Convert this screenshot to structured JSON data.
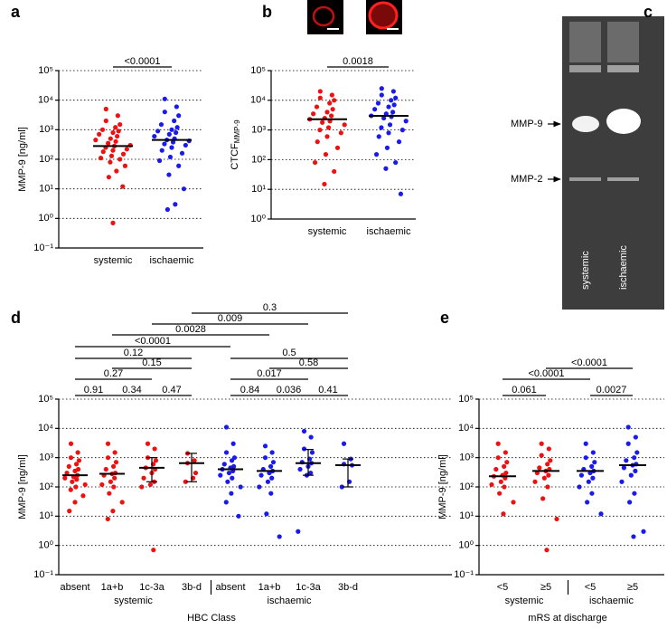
{
  "chart_data": [
    {
      "type": "dotplot",
      "panel": "a",
      "ylabel": "MMP-9 [ng/ml]",
      "log_scale": true,
      "grid": true,
      "ylim": [
        0.1,
        100000
      ],
      "yticks": [
        {
          "value": 0.1,
          "label": "10⁻¹"
        },
        {
          "value": 1,
          "label": "10⁰"
        },
        {
          "value": 10,
          "label": "10¹"
        },
        {
          "value": 100,
          "label": "10²"
        },
        {
          "value": 1000,
          "label": "10³"
        },
        {
          "value": 10000,
          "label": "10⁴"
        },
        {
          "value": 100000,
          "label": "10⁵"
        }
      ],
      "series": [
        {
          "name": "systemic",
          "color": "#ee1111",
          "median": 280,
          "values": [
            5000,
            3000,
            2000,
            1500,
            1200,
            1000,
            900,
            800,
            700,
            600,
            500,
            450,
            400,
            350,
            300,
            280,
            250,
            220,
            200,
            180,
            150,
            130,
            110,
            100,
            80,
            60,
            40,
            25,
            12,
            0.7
          ]
        },
        {
          "name": "ischaemic",
          "color": "#1a1aee",
          "median": 450,
          "values": [
            11000,
            6000,
            4000,
            3000,
            2000,
            1500,
            1200,
            1000,
            900,
            800,
            700,
            600,
            500,
            450,
            420,
            380,
            330,
            300,
            250,
            200,
            160,
            120,
            90,
            60,
            30,
            10,
            3,
            2
          ]
        }
      ],
      "comparisons": [
        {
          "from": 0,
          "to": 1,
          "label": "<0.0001"
        }
      ]
    },
    {
      "type": "dotplot",
      "panel": "b",
      "ylabel": "CTCF",
      "ylabel_sub": "MMP-9",
      "log_scale": true,
      "grid": true,
      "ylim": [
        1,
        100000
      ],
      "yticks": [
        {
          "value": 1,
          "label": "10⁰"
        },
        {
          "value": 10,
          "label": "10¹"
        },
        {
          "value": 100,
          "label": "10²"
        },
        {
          "value": 1000,
          "label": "10³"
        },
        {
          "value": 10000,
          "label": "10⁴"
        },
        {
          "value": 100000,
          "label": "10⁵"
        }
      ],
      "series": [
        {
          "name": "systemic",
          "color": "#ee1111",
          "median": 2300,
          "values": [
            20000,
            15000,
            12000,
            10000,
            8000,
            6000,
            5000,
            4000,
            3500,
            3000,
            2500,
            2300,
            2000,
            1800,
            1500,
            1200,
            1000,
            800,
            600,
            400,
            250,
            150,
            80,
            40,
            15
          ]
        },
        {
          "name": "ischaemic",
          "color": "#1a1aee",
          "median": 3000,
          "values": [
            25000,
            20000,
            15000,
            12000,
            10000,
            8000,
            7000,
            6000,
            5000,
            4000,
            3500,
            3000,
            2800,
            2500,
            2000,
            1500,
            1200,
            1000,
            800,
            600,
            400,
            250,
            150,
            80,
            50,
            7
          ]
        }
      ],
      "comparisons": [
        {
          "from": 0,
          "to": 1,
          "label": "0.0018"
        }
      ]
    },
    {
      "type": "gel",
      "panel": "c",
      "band_labels": [
        "MMP-9",
        "MMP-2"
      ],
      "lane_labels": [
        "systemic",
        "ischaemic"
      ]
    },
    {
      "type": "dotplot",
      "panel": "d",
      "ylabel": "MMP-9 [ng/ml]",
      "xlabel": "HBC Class",
      "group_labels": [
        "systemic",
        "ischaemic"
      ],
      "log_scale": true,
      "grid": true,
      "ylim": [
        0.1,
        100000
      ],
      "yticks": [
        {
          "value": 0.1,
          "label": "10⁻¹"
        },
        {
          "value": 1,
          "label": "10⁰"
        },
        {
          "value": 10,
          "label": "10¹"
        },
        {
          "value": 100,
          "label": "10²"
        },
        {
          "value": 1000,
          "label": "10³"
        },
        {
          "value": 10000,
          "label": "10⁴"
        },
        {
          "value": 100000,
          "label": "10⁵"
        }
      ],
      "series": [
        {
          "name": "absent",
          "color": "#ee1111",
          "median": 250,
          "values": [
            3000,
            1500,
            1000,
            800,
            600,
            500,
            400,
            350,
            300,
            250,
            220,
            200,
            180,
            150,
            120,
            100,
            80,
            50,
            30,
            15
          ]
        },
        {
          "name": "1a+b",
          "color": "#ee1111",
          "median": 280,
          "values": [
            3000,
            1500,
            1000,
            700,
            500,
            400,
            300,
            280,
            250,
            200,
            150,
            120,
            100,
            60,
            30,
            15,
            8
          ]
        },
        {
          "name": "1c-3a",
          "color": "#ee1111",
          "median": 450,
          "iqr": [
            150,
            1000
          ],
          "values": [
            3000,
            2000,
            1000,
            800,
            600,
            450,
            400,
            300,
            200,
            150,
            120,
            100,
            0.7
          ]
        },
        {
          "name": "3b-d",
          "color": "#ee1111",
          "median": 650,
          "iqr": [
            150,
            1400
          ],
          "values": [
            1400,
            800,
            650,
            300,
            200,
            150
          ]
        },
        {
          "name": "absent",
          "color": "#1a1aee",
          "median": 400,
          "values": [
            11000,
            3000,
            1500,
            1000,
            800,
            600,
            500,
            450,
            400,
            350,
            300,
            250,
            200,
            150,
            100,
            60,
            30,
            10
          ]
        },
        {
          "name": "1a+b",
          "color": "#1a1aee",
          "median": 350,
          "values": [
            2500,
            1500,
            1000,
            700,
            500,
            400,
            350,
            300,
            250,
            200,
            150,
            100,
            60,
            12,
            2
          ]
        },
        {
          "name": "1c-3a",
          "color": "#1a1aee",
          "median": 650,
          "iqr": [
            250,
            1900
          ],
          "values": [
            8000,
            5000,
            2000,
            1500,
            900,
            700,
            650,
            500,
            400,
            300,
            250,
            3
          ]
        },
        {
          "name": "3b-d",
          "color": "#1a1aee",
          "median": 550,
          "iqr": [
            100,
            900
          ],
          "values": [
            3000,
            900,
            600,
            550,
            150,
            100
          ]
        }
      ],
      "comparisons": [
        {
          "from": 0,
          "to": 1,
          "label": "0.91"
        },
        {
          "from": 1,
          "to": 2,
          "label": "0.34"
        },
        {
          "from": 2,
          "to": 3,
          "label": "0.47"
        },
        {
          "from": 4,
          "to": 5,
          "label": "0.84"
        },
        {
          "from": 5,
          "to": 6,
          "label": "0.036"
        },
        {
          "from": 6,
          "to": 7,
          "label": "0.41"
        },
        {
          "from": 0,
          "to": 2,
          "label": "0.27"
        },
        {
          "from": 4,
          "to": 6,
          "label": "0.017"
        },
        {
          "from": 1,
          "to": 3,
          "label": "0.15"
        },
        {
          "from": 5,
          "to": 7,
          "label": "0.58"
        },
        {
          "from": 0,
          "to": 3,
          "label": "0.12"
        },
        {
          "from": 4,
          "to": 7,
          "label": "0.5"
        },
        {
          "from": 0,
          "to": 4,
          "label": "<0.0001"
        },
        {
          "from": 1,
          "to": 5,
          "label": "0.0028"
        },
        {
          "from": 2,
          "to": 6,
          "label": "0.009"
        },
        {
          "from": 3,
          "to": 7,
          "label": "0.3"
        }
      ]
    },
    {
      "type": "dotplot",
      "panel": "e",
      "ylabel": "MMP-9 [ng/ml]",
      "xlabel": "mRS at discharge",
      "group_labels": [
        "systemic",
        "ischaemic"
      ],
      "log_scale": true,
      "grid": true,
      "ylim": [
        0.1,
        100000
      ],
      "yticks": [
        {
          "value": 0.1,
          "label": "10⁻¹"
        },
        {
          "value": 1,
          "label": "10⁰"
        },
        {
          "value": 10,
          "label": "10¹"
        },
        {
          "value": 100,
          "label": "10²"
        },
        {
          "value": 1000,
          "label": "10³"
        },
        {
          "value": 10000,
          "label": "10⁴"
        },
        {
          "value": 100000,
          "label": "10⁵"
        }
      ],
      "series": [
        {
          "name": "<5",
          "color": "#ee1111",
          "median": 230,
          "values": [
            3000,
            1500,
            1000,
            700,
            500,
            400,
            300,
            250,
            230,
            200,
            150,
            120,
            100,
            60,
            30,
            12
          ]
        },
        {
          "name": "≥5",
          "color": "#ee1111",
          "median": 350,
          "values": [
            3000,
            2000,
            1200,
            800,
            600,
            450,
            400,
            350,
            300,
            250,
            200,
            150,
            100,
            40,
            8,
            0.7
          ]
        },
        {
          "name": "<5",
          "color": "#1a1aee",
          "median": 350,
          "values": [
            3000,
            1500,
            1000,
            700,
            500,
            400,
            350,
            300,
            250,
            200,
            150,
            100,
            60,
            30,
            12
          ]
        },
        {
          "name": "≥5",
          "color": "#1a1aee",
          "median": 550,
          "values": [
            11000,
            5000,
            3000,
            1500,
            1000,
            800,
            600,
            550,
            450,
            350,
            250,
            150,
            60,
            30,
            3,
            2
          ]
        }
      ],
      "comparisons": [
        {
          "from": 0,
          "to": 1,
          "label": "0.061"
        },
        {
          "from": 2,
          "to": 3,
          "label": "0.0027"
        },
        {
          "from": 0,
          "to": 2,
          "label": "<0.0001"
        },
        {
          "from": 1,
          "to": 3,
          "label": "<0.0001"
        }
      ]
    }
  ]
}
